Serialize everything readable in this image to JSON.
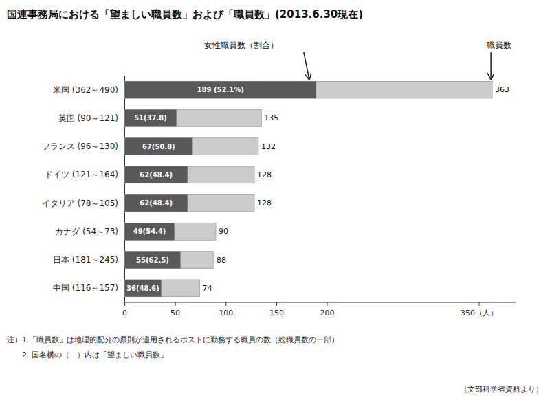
{
  "chart_data": {
    "type": "bar",
    "orientation": "horizontal",
    "stacked": false,
    "grid": false,
    "title": "国連事務局における「望ましい職員数」および「職員数」(2013.6.30現在)",
    "categories": [
      "米国 (362～490)",
      "英国 (90～121)",
      "フランス (96～130)",
      "ドイツ (121～164)",
      "イタリア (78～105)",
      "カナダ (54～73)",
      "日本 (181～245)",
      "中国 (116～157)"
    ],
    "series": [
      {
        "name": "職員数",
        "color": "#cccccc",
        "data_labels": true,
        "values": [
          363,
          135,
          132,
          128,
          128,
          90,
          88,
          74
        ]
      },
      {
        "name": "女性職員数（割合）",
        "color": "#595959",
        "data_labels": true,
        "values": [
          189,
          51,
          67,
          62,
          62,
          49,
          55,
          36
        ],
        "value_labels": [
          "189 (52.1%)",
          "51(37.8)",
          "67(50.8)",
          "62(48.4)",
          "62(48.4)",
          "49(54.4)",
          "55(62.5)",
          "36(48.6)"
        ]
      }
    ],
    "xlim": [
      -1,
      386
    ],
    "xticks": [
      0,
      50,
      100,
      150,
      200,
      {
        "value": 350,
        "label": "350（人）"
      }
    ],
    "notes": [
      "注）1.「職員数」は地理的配分の原則が適用されるポストに勤務する職員の数（総職員数の一部）",
      "　　2. 国名横の（　）内は「望ましい職員数」"
    ],
    "source": "（文部科学省資料より）"
  }
}
